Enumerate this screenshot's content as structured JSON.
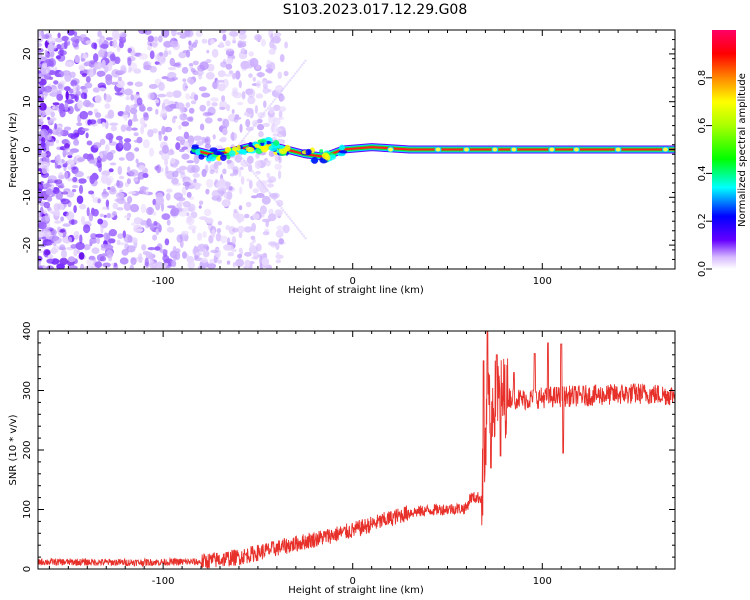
{
  "title": "S103.2023.017.12.29.G08",
  "chart_data": [
    {
      "type": "heatmap",
      "xlabel": "Height of straight line (km)",
      "ylabel": "Frequency (Hz)",
      "xlim": [
        -166,
        170
      ],
      "ylim": [
        -25,
        25
      ],
      "x_ticks": [
        -100,
        0,
        100
      ],
      "y_ticks": [
        20,
        10,
        0,
        -10,
        -20
      ],
      "colorbar": {
        "label": "Normalized spectral amplitude",
        "range": [
          0,
          1
        ],
        "ticks": [
          0.0,
          0.2,
          0.4,
          0.6,
          0.8
        ],
        "tick_labels": [
          "0.0",
          "0.2",
          "0.4",
          "0.6",
          "0.8"
        ],
        "colors": [
          "#ffffff",
          "#6600ff",
          "#0000ff",
          "#00ffff",
          "#00ff00",
          "#ffff00",
          "#ff8800",
          "#ff0000",
          "#ff0066"
        ]
      },
      "description_points": {
        "noise_region_x": [
          -166,
          -50
        ],
        "carrier_start_x": -85,
        "carrier_frequency": 0,
        "carrier_wobble": [
          {
            "x": -85,
            "y": 0
          },
          {
            "x": -75,
            "y": -1
          },
          {
            "x": -65,
            "y": -0.5
          },
          {
            "x": -55,
            "y": 0.5
          },
          {
            "x": -45,
            "y": 1
          },
          {
            "x": -35,
            "y": 0
          },
          {
            "x": -25,
            "y": -1
          },
          {
            "x": -15,
            "y": -1.5
          },
          {
            "x": -5,
            "y": 0
          },
          {
            "x": 10,
            "y": 0.5
          },
          {
            "x": 30,
            "y": 0
          },
          {
            "x": 80,
            "y": 0
          },
          {
            "x": 105,
            "y": 0
          },
          {
            "x": 170,
            "y": 0
          }
        ]
      },
      "grid": false
    },
    {
      "type": "line",
      "xlabel": "Height of straight line (km)",
      "ylabel": "SNR (10 * v/v)",
      "xlim": [
        -166,
        170
      ],
      "ylim": [
        0,
        400
      ],
      "x_ticks": [
        -100,
        0,
        100
      ],
      "y_ticks": [
        0,
        100,
        200,
        300,
        400
      ],
      "series": [
        {
          "color": "#e8302a",
          "envelope": [
            {
              "x": -166,
              "y": 12
            },
            {
              "x": -120,
              "y": 11
            },
            {
              "x": -80,
              "y": 12
            },
            {
              "x": -60,
              "y": 20
            },
            {
              "x": -40,
              "y": 35
            },
            {
              "x": -20,
              "y": 50
            },
            {
              "x": 0,
              "y": 65
            },
            {
              "x": 20,
              "y": 85
            },
            {
              "x": 30,
              "y": 95
            },
            {
              "x": 45,
              "y": 100
            },
            {
              "x": 60,
              "y": 102
            },
            {
              "x": 62,
              "y": 120
            },
            {
              "x": 68,
              "y": 120
            },
            {
              "x": 72,
              "y": 280
            },
            {
              "x": 80,
              "y": 290
            },
            {
              "x": 90,
              "y": 285
            },
            {
              "x": 100,
              "y": 288
            },
            {
              "x": 110,
              "y": 290
            },
            {
              "x": 130,
              "y": 292
            },
            {
              "x": 150,
              "y": 295
            },
            {
              "x": 170,
              "y": 292
            }
          ],
          "spikes": [
            {
              "x": 69,
              "y": 350
            },
            {
              "x": 71,
              "y": 400
            },
            {
              "x": 73,
              "y": 170
            },
            {
              "x": 76,
              "y": 360
            },
            {
              "x": 78,
              "y": 190
            },
            {
              "x": 85,
              "y": 330
            },
            {
              "x": 96,
              "y": 362
            },
            {
              "x": 103,
              "y": 380
            },
            {
              "x": 110,
              "y": 378
            },
            {
              "x": 111,
              "y": 195
            }
          ]
        }
      ],
      "grid": false
    }
  ]
}
